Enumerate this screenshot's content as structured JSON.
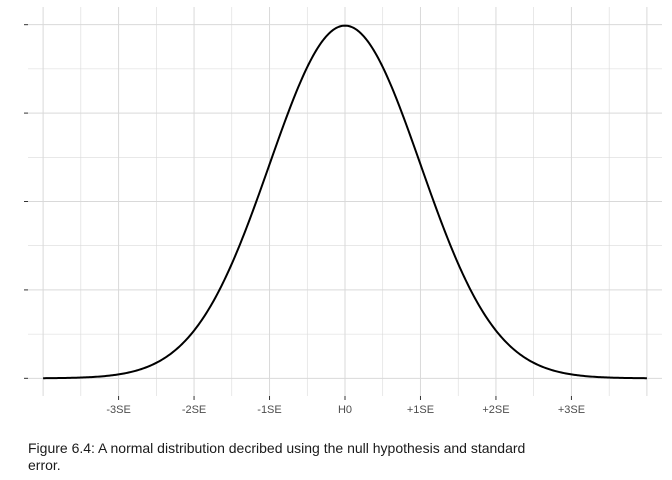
{
  "chart_data": {
    "type": "line",
    "title": "",
    "xlabel": "",
    "ylabel": "",
    "xlim": [
      -4.2,
      4.2
    ],
    "ylim": [
      -0.02,
      0.42
    ],
    "x_ticks": [
      -3,
      -2,
      -1,
      0,
      1,
      2,
      3
    ],
    "x_tick_labels": [
      "-3SE",
      "-2SE",
      "-1SE",
      "H0",
      "+1SE",
      "+2SE",
      "+3SE"
    ],
    "y_ticks": [
      0,
      0.1,
      0.2,
      0.3,
      0.4
    ],
    "y_tick_labels": [
      "",
      "",
      "",
      "",
      ""
    ],
    "grid": true,
    "legend": "none",
    "series": [
      {
        "x_range": [
          -4,
          4
        ],
        "curve": "standard normal density",
        "color": "#000000"
      }
    ]
  },
  "caption": "Figure 6.4: A normal distribution decribed using the null hypothesis and standard error.",
  "colors": {
    "grid": "#d9d9d9",
    "axis": "#333333",
    "curve": "#000000"
  }
}
